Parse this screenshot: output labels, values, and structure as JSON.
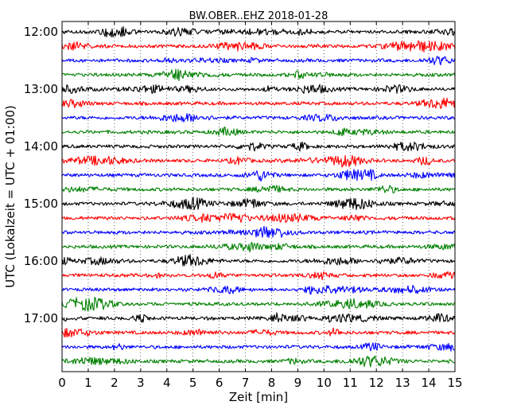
{
  "chart_data": {
    "type": "line",
    "title": "BW.OBER..EHZ 2018-01-28",
    "xlabel": "Zeit  [min]",
    "ylabel": "UTC (Lokalzeit = UTC + 01:00)",
    "xlim": [
      0,
      15
    ],
    "x_ticks": [
      "0",
      "1",
      "2",
      "3",
      "4",
      "5",
      "6",
      "7",
      "8",
      "9",
      "10",
      "11",
      "12",
      "13",
      "14",
      "15"
    ],
    "y_ticks": [
      "12:00",
      "13:00",
      "14:00",
      "15:00",
      "16:00",
      "17:00"
    ],
    "grid": "vertical-dotted",
    "trace_colors": [
      "#000000",
      "#ff0000",
      "#0000ff",
      "#008000"
    ],
    "traces": [
      {
        "start": "12:00",
        "color": "#000000"
      },
      {
        "start": "12:15",
        "color": "#ff0000"
      },
      {
        "start": "12:30",
        "color": "#0000ff"
      },
      {
        "start": "12:45",
        "color": "#008000"
      },
      {
        "start": "13:00",
        "color": "#000000"
      },
      {
        "start": "13:15",
        "color": "#ff0000"
      },
      {
        "start": "13:30",
        "color": "#0000ff"
      },
      {
        "start": "13:45",
        "color": "#008000"
      },
      {
        "start": "14:00",
        "color": "#000000"
      },
      {
        "start": "14:15",
        "color": "#ff0000"
      },
      {
        "start": "14:30",
        "color": "#0000ff"
      },
      {
        "start": "14:45",
        "color": "#008000"
      },
      {
        "start": "15:00",
        "color": "#000000"
      },
      {
        "start": "15:15",
        "color": "#ff0000"
      },
      {
        "start": "15:30",
        "color": "#0000ff"
      },
      {
        "start": "15:45",
        "color": "#008000"
      },
      {
        "start": "16:00",
        "color": "#000000"
      },
      {
        "start": "16:15",
        "color": "#ff0000"
      },
      {
        "start": "16:30",
        "color": "#0000ff"
      },
      {
        "start": "16:45",
        "color": "#008000"
      },
      {
        "start": "17:00",
        "color": "#000000"
      },
      {
        "start": "17:15",
        "color": "#ff0000"
      },
      {
        "start": "17:30",
        "color": "#0000ff"
      },
      {
        "start": "17:45",
        "color": "#008000"
      }
    ]
  }
}
